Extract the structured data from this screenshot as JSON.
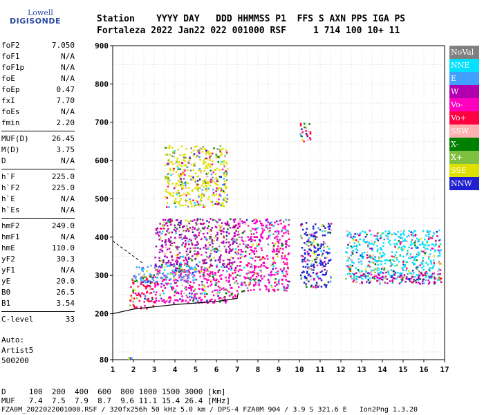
{
  "logo": {
    "line1": "Lowell",
    "line2": "DIGISONDE"
  },
  "header": {
    "line1": "Station    YYYY DAY   DDD HHMMSS P1  FFS S AXN PPS IGA PS",
    "line2": "Fortaleza 2022 Jan22 022 001000 RSF     1 714 100 10+ 11"
  },
  "params": {
    "group1": [
      {
        "label": "foF2",
        "value": "7.050"
      },
      {
        "label": "foF1",
        "value": "N/A"
      },
      {
        "label": "foF1p",
        "value": "N/A"
      },
      {
        "label": "foE",
        "value": "N/A"
      },
      {
        "label": "foEp",
        "value": "0.47"
      },
      {
        "label": "fxI",
        "value": "7.70"
      },
      {
        "label": "foEs",
        "value": "N/A"
      },
      {
        "label": "fmin",
        "value": "2.20"
      }
    ],
    "group2": [
      {
        "label": "MUF(D)",
        "value": "26.45"
      },
      {
        "label": "M(D)",
        "value": "3.75"
      },
      {
        "label": "D",
        "value": "N/A"
      }
    ],
    "group3": [
      {
        "label": "h`F",
        "value": "225.0"
      },
      {
        "label": "h`F2",
        "value": "225.0"
      },
      {
        "label": "h`E",
        "value": "N/A"
      },
      {
        "label": "h`Es",
        "value": "N/A"
      }
    ],
    "group4": [
      {
        "label": "hmF2",
        "value": "249.0"
      },
      {
        "label": "hmF1",
        "value": "N/A"
      },
      {
        "label": "hmE",
        "value": "110.0"
      },
      {
        "label": "yF2",
        "value": "30.3"
      },
      {
        "label": "yF1",
        "value": "N/A"
      },
      {
        "label": "yE",
        "value": "20.0"
      },
      {
        "label": "B0",
        "value": "26.5"
      },
      {
        "label": "B1",
        "value": "3.54"
      }
    ],
    "group5": [
      {
        "label": "C-level",
        "value": "33"
      }
    ]
  },
  "auto": {
    "line1": "Auto:",
    "line2": "Artist5",
    "line3": "500200"
  },
  "legend": [
    {
      "label": "NoVal",
      "color": "#808080"
    },
    {
      "label": "NNE",
      "color": "#00e0ff"
    },
    {
      "label": "E",
      "color": "#3fa0ff"
    },
    {
      "label": "W",
      "color": "#b000b0"
    },
    {
      "label": "Vo-",
      "color": "#ff00c0"
    },
    {
      "label": "Vo+",
      "color": "#ff0040"
    },
    {
      "label": "SSW",
      "color": "#ffb0b0"
    },
    {
      "label": "X-",
      "color": "#008000"
    },
    {
      "label": "X+",
      "color": "#80c040"
    },
    {
      "label": "SSE",
      "color": "#e0e000"
    },
    {
      "label": "NNW",
      "color": "#2020d0"
    }
  ],
  "bottom": {
    "line1": "D     100  200  400  600  800 1000 1500 3000 [km]",
    "line2": "MUF   7.4  7.5  7.9  8.7  9.6 11.1 15.4 26.4 [MHz]",
    "line3": "FZA0M_2022022001000.RSF / 320fx256h 50 kHz 5.0 km / DPS-4 FZA0M 904 / 3.9 S 321.6 E   Ion2Png 1.3.20"
  },
  "chart_data": {
    "type": "scatter",
    "x_ticks": [
      "1",
      "2",
      "3",
      "4",
      "5",
      "6",
      "7",
      "8",
      "9",
      "10",
      "11",
      "12",
      "13",
      "14",
      "15",
      "16",
      "17"
    ],
    "y_ticks": [
      "80",
      "200",
      "300",
      "400",
      "500",
      "600",
      "700",
      "800",
      "900"
    ],
    "xlim": [
      1,
      17
    ],
    "ylim": [
      80,
      900
    ],
    "grid": true,
    "clusters": [
      {
        "x": [
          1.7,
          1.9
        ],
        "y": [
          83,
          87
        ],
        "color": "#2020d0"
      },
      {
        "x": [
          1.8,
          3.0
        ],
        "y": [
          215,
          300
        ],
        "color": "#ff0040"
      },
      {
        "x": [
          3.0,
          7.0
        ],
        "y": [
          230,
          320
        ],
        "color": "#ff00c0"
      },
      {
        "x": [
          2.0,
          5.0
        ],
        "y": [
          280,
          330
        ],
        "color": "#3fa0ff"
      },
      {
        "x": [
          3.0,
          7.0
        ],
        "y": [
          320,
          450
        ],
        "color": "#b000b0"
      },
      {
        "x": [
          3.5,
          6.5
        ],
        "y": [
          480,
          640
        ],
        "color": "#e0e000"
      },
      {
        "x": [
          7.0,
          9.5
        ],
        "y": [
          260,
          450
        ],
        "color": "#ff00c0"
      },
      {
        "x": [
          10.0,
          11.5
        ],
        "y": [
          270,
          440
        ],
        "color": "#2020d0"
      },
      {
        "x": [
          10.0,
          10.5
        ],
        "y": [
          650,
          700
        ],
        "color": "#ff0040"
      },
      {
        "x": [
          12.2,
          16.8
        ],
        "y": [
          290,
          420
        ],
        "color": "#00e0ff"
      },
      {
        "x": [
          12.5,
          16.8
        ],
        "y": [
          280,
          310
        ],
        "color": "#b000b0"
      }
    ],
    "trace": {
      "x": [
        1.0,
        2.0,
        3.0,
        4.0,
        5.0,
        6.0,
        6.5,
        7.0,
        7.05
      ],
      "y": [
        200,
        212,
        218,
        224,
        228,
        232,
        236,
        240,
        255
      ]
    }
  }
}
